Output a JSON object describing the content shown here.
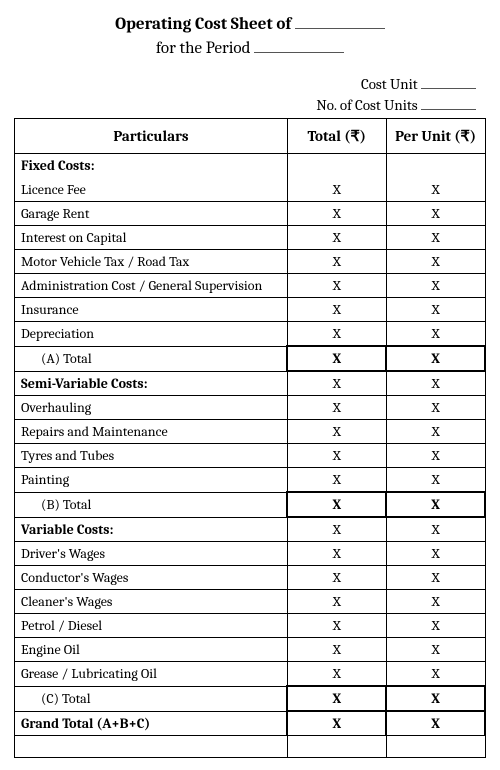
{
  "header": {
    "title_prefix": "Operating Cost Sheet of",
    "subtitle_prefix": "for the Period"
  },
  "meta": {
    "cost_unit_label": "Cost Unit",
    "num_units_label": "No. of Cost Units"
  },
  "columns": {
    "particulars": "Particulars",
    "total": "Total (₹)",
    "per_unit": "Per Unit (₹)"
  },
  "mark": {
    "x": "X"
  },
  "sections": {
    "fixed": {
      "heading": "Fixed Costs:",
      "items": [
        "Licence Fee",
        "Garage Rent",
        "Interest on Capital",
        "Motor Vehicle Tax /  Road Tax",
        "Administration Cost / General Supervision",
        "Insurance",
        "Depreciation"
      ],
      "subtotal": "(A)    Total"
    },
    "semi": {
      "heading": "Semi-Variable Costs:",
      "items": [
        "Overhauling",
        "Repairs and Maintenance",
        "Tyres and Tubes",
        "Painting"
      ],
      "subtotal": "(B)    Total"
    },
    "variable": {
      "heading": "Variable Costs:",
      "items": [
        "Driver's Wages",
        "Conductor's Wages",
        "Cleaner's Wages",
        "Petrol / Diesel",
        "Engine Oil",
        "Grease / Lubricating Oil"
      ],
      "subtotal": "(C)    Total"
    }
  },
  "grand_total": "Grand Total (A+B+C)"
}
